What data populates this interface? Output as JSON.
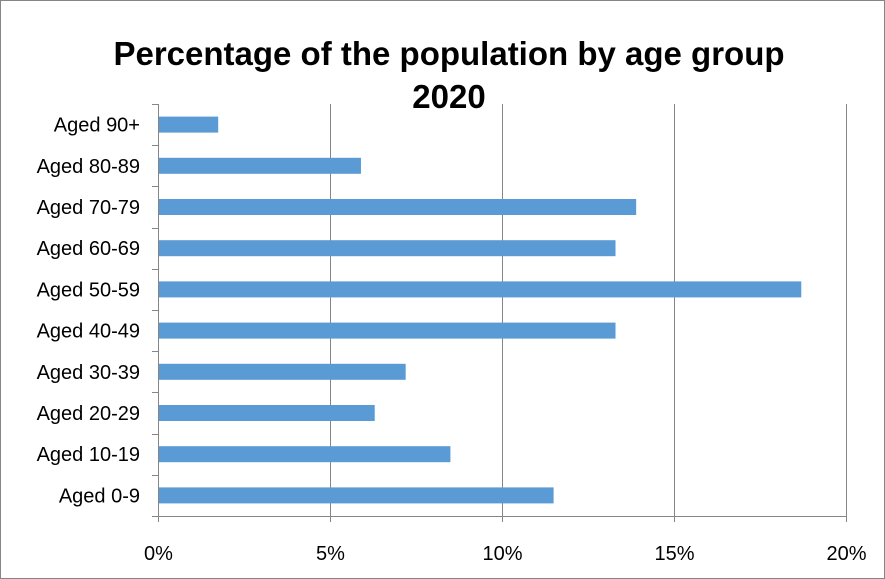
{
  "chart_data": {
    "type": "bar",
    "orientation": "horizontal",
    "title_line1": "Percentage of the population by age group",
    "title_line2": "2020",
    "categories": [
      "Aged 0-9",
      "Aged 10-19",
      "Aged 20-29",
      "Aged 30-39",
      "Aged 40-49",
      "Aged 50-59",
      "Aged 60-69",
      "Aged 70-79",
      "Aged 80-89",
      "Aged 90+"
    ],
    "values": [
      11.5,
      8.5,
      6.3,
      7.2,
      13.3,
      18.7,
      13.3,
      13.9,
      5.9,
      1.75
    ],
    "x_ticks": [
      "0%",
      "5%",
      "10%",
      "15%",
      "20%"
    ],
    "xlim": [
      0,
      20
    ],
    "xlabel": "",
    "ylabel": "",
    "grid": true,
    "legend": "none",
    "bar_color": "#5B9BD5"
  }
}
